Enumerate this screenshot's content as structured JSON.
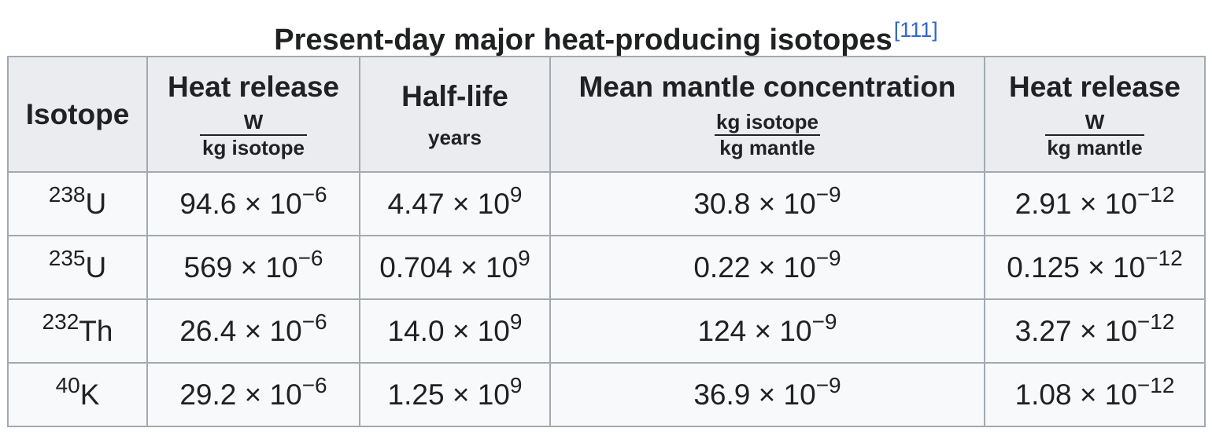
{
  "caption": {
    "title": "Present-day major heat-producing isotopes",
    "ref": "[111]"
  },
  "headers": {
    "isotope": "Isotope",
    "heat_release_isotope": {
      "label": "Heat release",
      "num": "W",
      "den": "kg isotope"
    },
    "half_life": {
      "label": "Half-life",
      "unit": "years"
    },
    "concentration": {
      "label": "Mean mantle concentration",
      "num": "kg isotope",
      "den": "kg mantle"
    },
    "heat_release_mantle": {
      "label": "Heat release",
      "num": "W",
      "den": "kg mantle"
    }
  },
  "rows": [
    {
      "mass": "238",
      "symbol": "U",
      "heat_iso": {
        "m": "94.6 × 10",
        "e": "−6"
      },
      "half_life": {
        "m": "4.47 × 10",
        "e": "9"
      },
      "conc": {
        "m": "30.8 × 10",
        "e": "−9"
      },
      "heat_mantle": {
        "m": "2.91 × 10",
        "e": "−12"
      }
    },
    {
      "mass": "235",
      "symbol": "U",
      "heat_iso": {
        "m": "569 × 10",
        "e": "−6"
      },
      "half_life": {
        "m": "0.704 × 10",
        "e": "9"
      },
      "conc": {
        "m": "0.22 × 10",
        "e": "−9"
      },
      "heat_mantle": {
        "m": "0.125 × 10",
        "e": "−12"
      }
    },
    {
      "mass": "232",
      "symbol": "Th",
      "heat_iso": {
        "m": "26.4 × 10",
        "e": "−6"
      },
      "half_life": {
        "m": "14.0 × 10",
        "e": "9"
      },
      "conc": {
        "m": "124 × 10",
        "e": "−9"
      },
      "heat_mantle": {
        "m": "3.27 × 10",
        "e": "−12"
      }
    },
    {
      "mass": "40",
      "symbol": "K",
      "heat_iso": {
        "m": "29.2 × 10",
        "e": "−6"
      },
      "half_life": {
        "m": "1.25 × 10",
        "e": "9"
      },
      "conc": {
        "m": "36.9 × 10",
        "e": "−9"
      },
      "heat_mantle": {
        "m": "1.08 × 10",
        "e": "−12"
      }
    }
  ]
}
